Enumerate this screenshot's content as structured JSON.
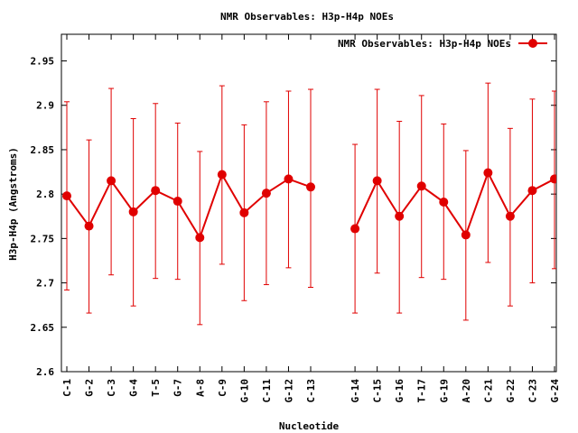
{
  "chart_data": {
    "type": "line",
    "title": "NMR Observables: H3p-H4p NOEs",
    "xlabel": "Nucleotide",
    "ylabel": "H3p-H4p (Angstroms)",
    "ylim": [
      2.6,
      2.98
    ],
    "yticks": [
      2.6,
      2.65,
      2.7,
      2.75,
      2.8,
      2.85,
      2.9,
      2.95
    ],
    "ytick_labels": [
      "2.6",
      "2.65",
      "2.7",
      "2.75",
      "2.8",
      "2.85",
      "2.9",
      "2.95"
    ],
    "grid": false,
    "legend_position": "top-right",
    "categories": [
      "C-1",
      "G-2",
      "C-3",
      "G-4",
      "T-5",
      "G-7",
      "A-8",
      "C-9",
      "G-10",
      "C-11",
      "G-12",
      "C-13",
      "G-14",
      "C-15",
      "G-16",
      "T-17",
      "G-19",
      "A-20",
      "C-21",
      "G-22",
      "C-23",
      "G-24"
    ],
    "x": [
      1,
      2,
      3,
      4,
      5,
      6,
      7,
      8,
      9,
      10,
      11,
      12,
      14,
      15,
      16,
      17,
      18,
      19,
      20,
      21,
      22,
      23
    ],
    "series": [
      {
        "name": "NMR Observables: H3p-H4p NOEs",
        "color": "#e00000",
        "values": [
          2.798,
          2.764,
          2.815,
          2.78,
          2.804,
          2.792,
          2.751,
          2.822,
          2.779,
          2.801,
          2.817,
          2.808,
          2.761,
          2.815,
          2.775,
          2.809,
          2.791,
          2.754,
          2.824,
          2.775,
          2.804,
          2.817
        ],
        "err_high": [
          2.904,
          2.861,
          2.919,
          2.885,
          2.902,
          2.88,
          2.848,
          2.922,
          2.878,
          2.904,
          2.916,
          2.918,
          2.856,
          2.918,
          2.882,
          2.911,
          2.879,
          2.849,
          2.925,
          2.874,
          2.907,
          2.916
        ],
        "err_low": [
          2.692,
          2.666,
          2.709,
          2.674,
          2.705,
          2.704,
          2.653,
          2.721,
          2.68,
          2.698,
          2.717,
          2.695,
          2.666,
          2.711,
          2.666,
          2.706,
          2.704,
          2.658,
          2.723,
          2.674,
          2.7,
          2.716
        ]
      }
    ]
  }
}
